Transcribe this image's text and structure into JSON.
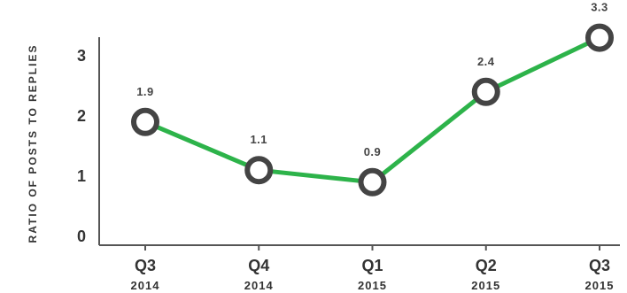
{
  "chart_data": {
    "type": "line",
    "title": "",
    "xlabel": "",
    "ylabel": "RATIO OF POSTS TO REPLIES",
    "categories": [
      {
        "main": "Q3",
        "sub": "2014"
      },
      {
        "main": "Q4",
        "sub": "2014"
      },
      {
        "main": "Q1",
        "sub": "2015"
      },
      {
        "main": "Q2",
        "sub": "2015"
      },
      {
        "main": "Q3",
        "sub": "2015"
      }
    ],
    "values": [
      1.9,
      1.1,
      0.9,
      2.4,
      3.3
    ],
    "data_labels": [
      "1.9",
      "1.1",
      "0.9",
      "2.4",
      "3.3"
    ],
    "yticks": [
      0,
      1,
      2,
      3
    ],
    "ylim": [
      0,
      3.5
    ],
    "grid": false,
    "line_color": "#2db34a",
    "marker_stroke_color": "#444444"
  }
}
